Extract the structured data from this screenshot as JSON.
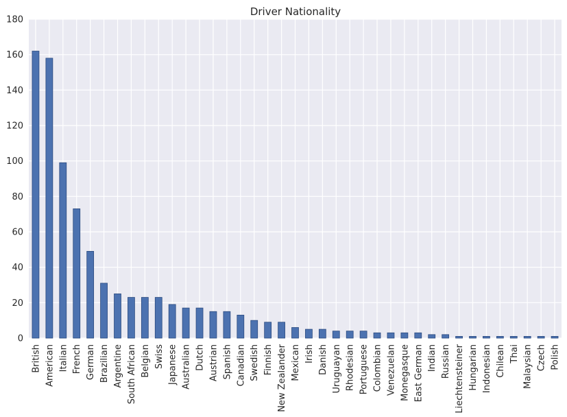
{
  "chart_data": {
    "type": "bar",
    "title": "Driver Nationality",
    "xlabel": "",
    "ylabel": "",
    "ylim": [
      0,
      180
    ],
    "yticks": [
      "0",
      "20",
      "40",
      "60",
      "80",
      "100",
      "120",
      "140",
      "160",
      "180"
    ],
    "grid": true,
    "colors": {
      "bar": "#4c72b0",
      "bar_edge": "#2b4a7f",
      "plot_bg": "#eaeaf2",
      "grid": "#ffffff",
      "text": "#262626"
    },
    "categories": [
      "British",
      "American",
      "Italian",
      "French",
      "German",
      "Brazilian",
      "Argentine",
      "South African",
      "Belgian",
      "Swiss",
      "Japanese",
      "Australian",
      "Dutch",
      "Austrian",
      "Spanish",
      "Canadian",
      "Swedish",
      "Finnish",
      "New Zealander",
      "Mexican",
      "Irish",
      "Danish",
      "Uruguayan",
      "Rhodesian",
      "Portuguese",
      "Colombian",
      "Venezuelan",
      "Monegasque",
      "East German",
      "Indian",
      "Russian",
      "Liechtensteiner",
      "Hungarian",
      "Indonesian",
      "Chilean",
      "Thai",
      "Malaysian",
      "Czech",
      "Polish"
    ],
    "values": [
      162,
      158,
      99,
      73,
      49,
      31,
      25,
      23,
      23,
      23,
      19,
      17,
      17,
      15,
      15,
      13,
      10,
      9,
      9,
      6,
      5,
      5,
      4,
      4,
      4,
      3,
      3,
      3,
      3,
      2,
      2,
      1,
      1,
      1,
      1,
      1,
      1,
      1,
      1
    ]
  }
}
